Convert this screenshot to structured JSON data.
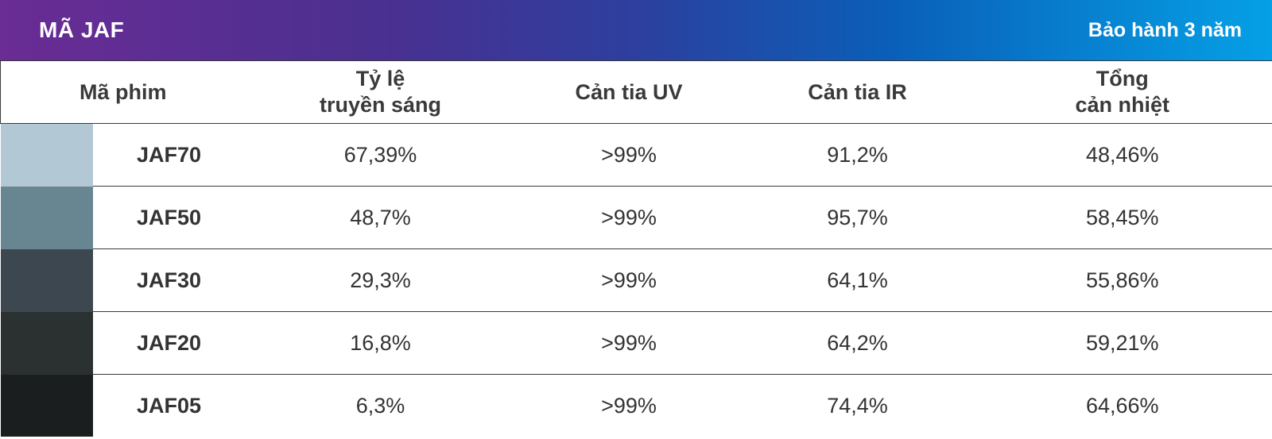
{
  "banner": {
    "title": "MÃ JAF",
    "warranty": "Bảo hành 3 năm",
    "gradient_colors": [
      "#6a2c95",
      "#2d3f9e",
      "#05a0e6"
    ]
  },
  "table": {
    "headers": {
      "code": "Mã phim",
      "vlt_line1": "Tỷ lệ",
      "vlt_line2": "truyền sáng",
      "uv": "Cản tia UV",
      "ir": "Cản tia IR",
      "tser_line1": "Tổng",
      "tser_line2": "cản nhiệt"
    },
    "rows": [
      {
        "swatch_color": "#b3c8d5",
        "code": "JAF70",
        "vlt": "67,39%",
        "uv": ">99%",
        "ir": "91,2%",
        "tser": "48,46%"
      },
      {
        "swatch_color": "#688692",
        "code": "JAF50",
        "vlt": "48,7%",
        "uv": ">99%",
        "ir": "95,7%",
        "tser": "58,45%"
      },
      {
        "swatch_color": "#3c474f",
        "code": "JAF30",
        "vlt": "29,3%",
        "uv": ">99%",
        "ir": "64,1%",
        "tser": "55,86%"
      },
      {
        "swatch_color": "#2b3131",
        "code": "JAF20",
        "vlt": "16,8%",
        "uv": ">99%",
        "ir": "64,2%",
        "tser": "59,21%"
      },
      {
        "swatch_color": "#1a1e1f",
        "code": "JAF05",
        "vlt": "6,3%",
        "uv": ">99%",
        "ir": "74,4%",
        "tser": "64,66%"
      }
    ]
  }
}
